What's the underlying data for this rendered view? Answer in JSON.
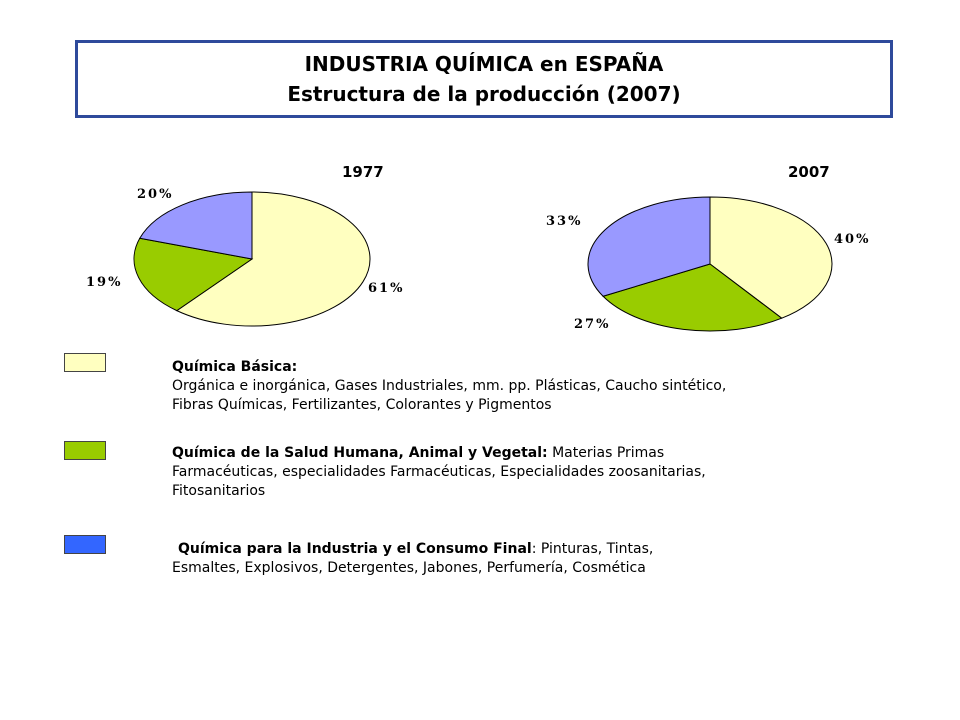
{
  "header": {
    "line1": "INDUSTRIA QUÍMICA en ESPAÑA",
    "line2": "Estructura de la producción (2007)"
  },
  "colors": {
    "basica": "#ffffc0",
    "salud": "#99cc00",
    "consumo_pie": "#9999ff",
    "consumo_legend": "#3366ff",
    "title_border": "#2e4a9b"
  },
  "chart_data": [
    {
      "type": "pie",
      "title": "1977",
      "labels": [
        "Química Básica",
        "Química de la Salud Humana, Animal y Vegetal",
        "Química para la Industria y el Consumo Final"
      ],
      "values": [
        61,
        19,
        20
      ],
      "value_labels": [
        "61%",
        "19%",
        "20%"
      ]
    },
    {
      "type": "pie",
      "title": "2007",
      "labels": [
        "Química Básica",
        "Química de la Salud Humana, Animal y Vegetal",
        "Química para la Industria y el Consumo Final"
      ],
      "values": [
        40,
        27,
        33
      ],
      "value_labels": [
        "40%",
        "27%",
        "33%"
      ]
    }
  ],
  "legend": [
    {
      "heading": "Química Básica:",
      "line1": "",
      "line2": "Orgánica e inorgánica, Gases Industriales, mm. pp. Plásticas, Caucho sintético,",
      "line3": "Fibras Químicas, Fertilizantes, Colorantes y Pigmentos"
    },
    {
      "heading": "Química de la Salud Humana, Animal y Vegetal:",
      "line1": " Materias Primas",
      "line2": "Farmacéuticas, especialidades Farmacéuticas, Especialidades zoosanitarias,",
      "line3": "Fitosanitarios"
    },
    {
      "heading": "Química para la Industria y el Consumo Final",
      "line1": ": Pinturas, Tintas,",
      "line2": "Esmaltes, Explosivos, Detergentes, Jabones, Perfumería, Cosmética",
      "line3": ""
    }
  ]
}
